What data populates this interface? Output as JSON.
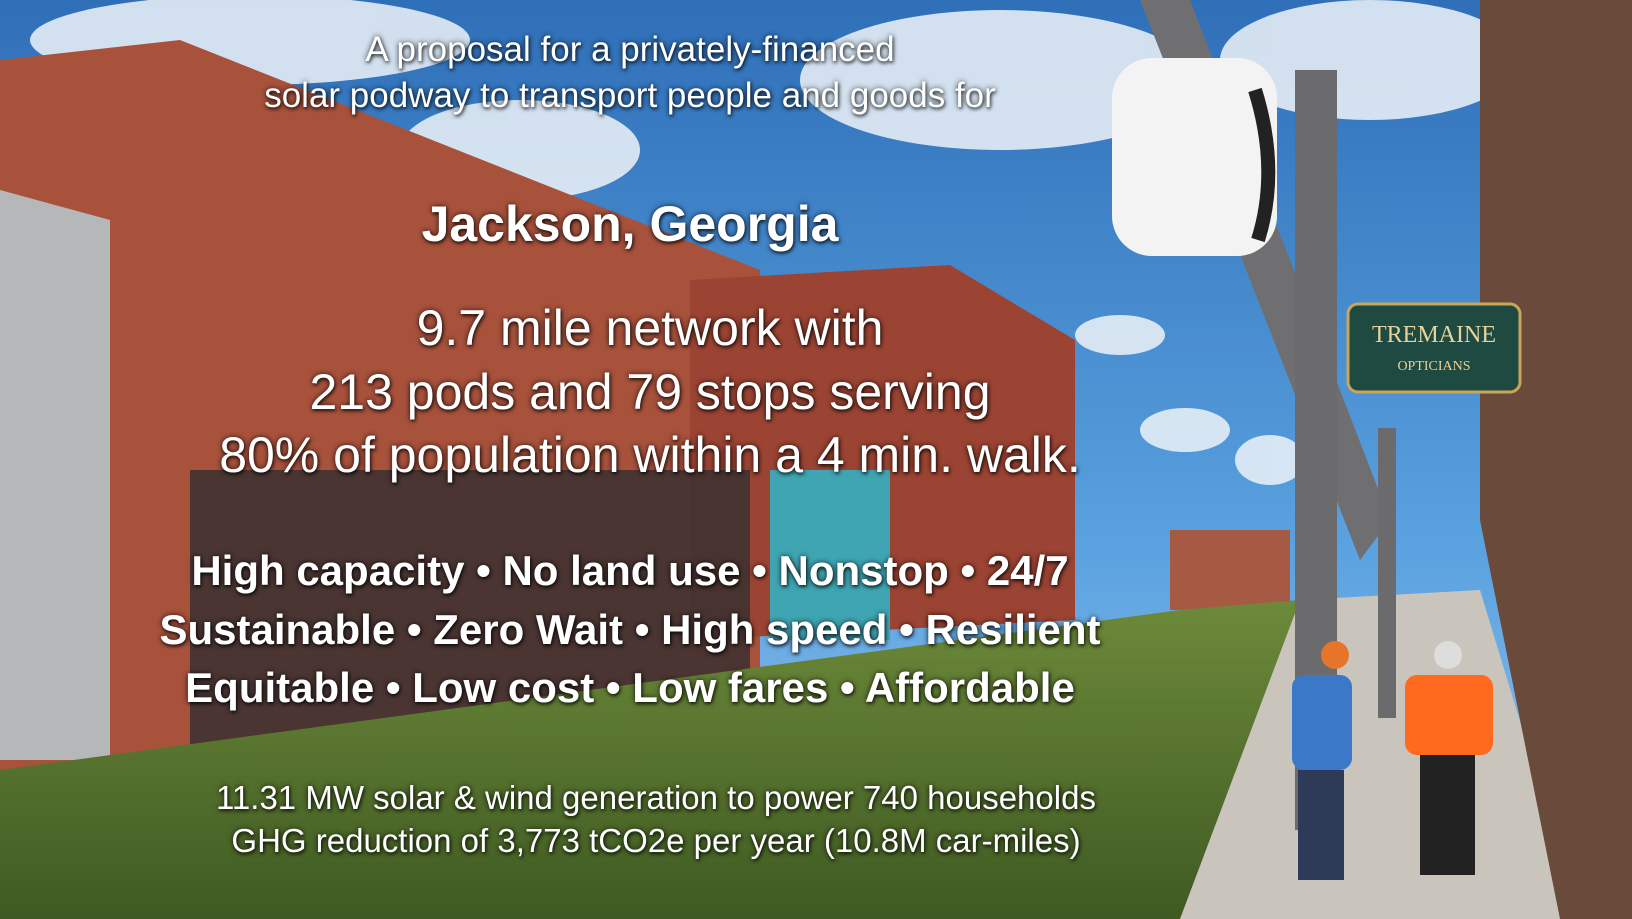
{
  "header": {
    "lines": [
      "A proposal for a privately-financed",
      "solar podway to transport people and goods for"
    ]
  },
  "title": "Jackson, Georgia",
  "network": {
    "lines": [
      "9.7 mile network with",
      "213 pods and 79 stops serving",
      "80% of population within a 4 min. walk."
    ]
  },
  "features": {
    "lines": [
      "High capacity • No land use • Nonstop • 24/7",
      "Sustainable • Zero Wait • High speed • Resilient",
      "Equitable • Low cost • Low fares • Affordable"
    ]
  },
  "stats": {
    "lines": [
      "11.31 MW solar & wind generation to power 740 households",
      "GHG reduction of 3,773 tCO2e per year (10.8M car-miles)"
    ]
  },
  "sign": {
    "line1": "TREMAINE",
    "line2": "OPTICIANS"
  }
}
